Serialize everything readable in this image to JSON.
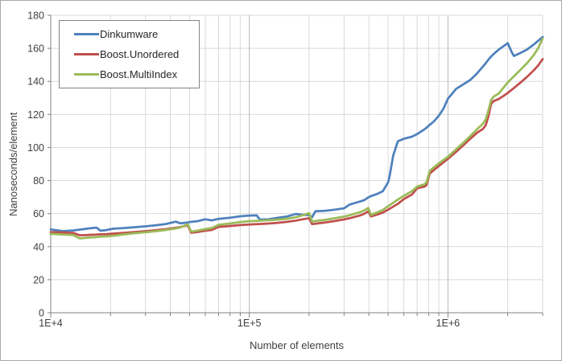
{
  "chart_data": {
    "type": "line",
    "title": "",
    "xlabel": "Number of elements",
    "ylabel": "Nanoseconds/element",
    "x_scale": "log",
    "xlim": [
      10000,
      3000000
    ],
    "ylim": [
      0,
      180
    ],
    "grid": true,
    "legend_position": "top-left",
    "y_ticks": [
      0,
      20,
      40,
      60,
      80,
      100,
      120,
      140,
      160,
      180
    ],
    "y_tick_labels": [
      "0",
      "20",
      "40",
      "60",
      "80",
      "100",
      "120",
      "140",
      "160",
      "180"
    ],
    "x_major_ticks": [
      10000,
      100000,
      1000000
    ],
    "x_major_tick_labels": [
      "1E+4",
      "1E+5",
      "1E+6"
    ],
    "colors": {
      "grid_minor": "#d9d9d9",
      "grid_major": "#b8b8b8",
      "axis": "#808080",
      "text": "#3f3f3f",
      "plot_background": "#ffffff"
    },
    "x": [
      10000,
      11500,
      13000,
      14000,
      15000,
      16000,
      17000,
      17800,
      19000,
      20700,
      23000,
      26000,
      30000,
      34000,
      38000,
      42600,
      45000,
      47000,
      49000,
      51000,
      55000,
      60000,
      64700,
      70000,
      80000,
      90000,
      100000,
      109000,
      113000,
      125000,
      138000,
      155000,
      172000,
      186000,
      200000,
      207000,
      215000,
      240000,
      270000,
      300000,
      320000,
      360000,
      380000,
      397000,
      410000,
      440000,
      470000,
      500000,
      510000,
      530000,
      560000,
      600000,
      660000,
      700000,
      760000,
      780000,
      810000,
      850000,
      900000,
      950000,
      1000000,
      1100000,
      1200000,
      1300000,
      1400000,
      1500000,
      1550000,
      1600000,
      1650000,
      1700000,
      1800000,
      1900000,
      2000000,
      2100000,
      2150000,
      2300000,
      2500000,
      2700000,
      2850000,
      3000000
    ],
    "series": [
      {
        "name": "Dinkumware",
        "color": "#4f81bd",
        "values": [
          50.4,
          49.4,
          49.8,
          50.3,
          50.8,
          51.2,
          51.5,
          49.6,
          50.0,
          50.9,
          51.2,
          51.7,
          52.3,
          53.0,
          53.7,
          55.1,
          54.1,
          54.4,
          54.7,
          55.0,
          55.4,
          56.6,
          55.9,
          56.8,
          57.5,
          58.4,
          58.8,
          58.9,
          56.4,
          56.6,
          57.4,
          58.3,
          59.8,
          59.3,
          59.0,
          57.8,
          61.4,
          61.7,
          62.4,
          63.2,
          65.5,
          67.3,
          68.2,
          69.8,
          70.6,
          71.9,
          73.5,
          79.0,
          83.5,
          95.0,
          103.8,
          105.3,
          106.6,
          108.1,
          110.9,
          112.0,
          113.7,
          115.8,
          119.2,
          123.5,
          129.5,
          135.5,
          138.3,
          141.0,
          144.8,
          148.9,
          151.0,
          153.2,
          155.1,
          156.6,
          159.2,
          161.2,
          163.1,
          157.5,
          155.4,
          157.0,
          159.3,
          162.2,
          164.6,
          166.9
        ]
      },
      {
        "name": "Boost.Unordered",
        "color": "#c0504d",
        "values": [
          48.8,
          48.6,
          48.3,
          46.9,
          47.0,
          47.2,
          47.3,
          47.5,
          47.6,
          47.9,
          48.3,
          48.8,
          49.4,
          50.0,
          50.6,
          51.4,
          51.9,
          52.4,
          52.9,
          48.4,
          48.9,
          49.6,
          50.1,
          51.9,
          52.5,
          53.1,
          53.4,
          53.6,
          53.7,
          54.0,
          54.4,
          55.0,
          55.8,
          56.6,
          57.2,
          53.6,
          53.9,
          54.6,
          55.5,
          56.5,
          57.2,
          58.8,
          60.0,
          61.3,
          58.3,
          59.4,
          60.6,
          62.4,
          63.0,
          64.2,
          65.9,
          68.8,
          71.6,
          75.3,
          76.3,
          77.2,
          84.2,
          86.4,
          88.8,
          91.0,
          93.1,
          97.4,
          101.5,
          105.4,
          108.9,
          111.2,
          113.5,
          119.0,
          126.5,
          128.1,
          129.3,
          131.1,
          133.0,
          135.0,
          136.0,
          138.9,
          142.7,
          146.6,
          149.7,
          153.5
        ]
      },
      {
        "name": "Boost.MultiIndex",
        "color": "#9bbb59",
        "values": [
          47.7,
          47.4,
          47.0,
          45.0,
          45.3,
          45.6,
          45.8,
          46.0,
          46.2,
          46.6,
          47.3,
          48.0,
          48.7,
          49.4,
          50.1,
          51.0,
          51.6,
          52.6,
          53.5,
          49.1,
          49.7,
          50.6,
          51.3,
          53.2,
          54.0,
          54.9,
          55.4,
          55.6,
          55.7,
          56.0,
          56.3,
          56.9,
          57.8,
          59.0,
          60.3,
          55.2,
          55.5,
          56.2,
          57.2,
          58.2,
          59.0,
          60.8,
          62.0,
          63.4,
          59.2,
          60.7,
          62.2,
          64.5,
          65.2,
          66.6,
          68.5,
          70.8,
          73.6,
          76.4,
          77.7,
          78.9,
          85.8,
          88.0,
          90.4,
          92.5,
          94.4,
          98.9,
          103.0,
          107.1,
          111.0,
          114.3,
          117.0,
          122.5,
          128.7,
          130.8,
          132.6,
          136.0,
          139.4,
          141.9,
          143.1,
          146.6,
          151.0,
          155.8,
          160.2,
          166.0
        ]
      }
    ]
  }
}
